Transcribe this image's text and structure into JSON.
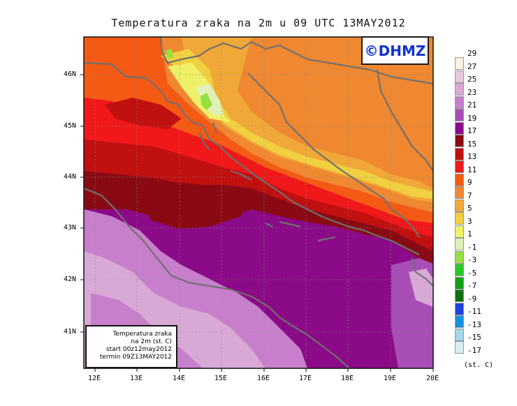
{
  "title": "Temperatura zraka na 2m u 09 UTC 13MAY2012",
  "watermark": "©DHMZ",
  "info_box": [
    "Temperatura zraka",
    "na 2m (st. C)",
    "start 00z12may2012",
    "termin 09Z13MAY2012"
  ],
  "latitude_labels": [
    "46N",
    "45N",
    "44N",
    "43N",
    "42N",
    "41N"
  ],
  "longitude_labels": [
    "12E",
    "13E",
    "14E",
    "15E",
    "16E",
    "17E",
    "18E",
    "19E",
    "20E"
  ],
  "legend": {
    "levels": [
      {
        "label": "29",
        "color": "#fff0e0"
      },
      {
        "label": "27",
        "color": "#e8c8dc"
      },
      {
        "label": "25",
        "color": "#d9a9d6"
      },
      {
        "label": "23",
        "color": "#c77fcb"
      },
      {
        "label": "21",
        "color": "#a84eb6"
      },
      {
        "label": "19",
        "color": "#8b0a87"
      },
      {
        "label": "17",
        "color": "#8a0a14"
      },
      {
        "label": "15",
        "color": "#c01010"
      },
      {
        "label": "13",
        "color": "#f01818"
      },
      {
        "label": "11",
        "color": "#f55a14"
      },
      {
        "label": "9",
        "color": "#ef8830"
      },
      {
        "label": "7",
        "color": "#f0a838"
      },
      {
        "label": "5",
        "color": "#f0d040"
      },
      {
        "label": "3",
        "color": "#f0f068"
      },
      {
        "label": "1",
        "color": "#e0f0b8"
      },
      {
        "label": "-1",
        "color": "#96e040"
      },
      {
        "label": "-3",
        "color": "#28c828"
      },
      {
        "label": "-5",
        "color": "#14a014"
      },
      {
        "label": "-7",
        "color": "#0c6e0c"
      },
      {
        "label": "-9",
        "color": "#2040e0"
      },
      {
        "label": "-11",
        "color": "#1090e0"
      },
      {
        "label": "-13",
        "color": "#a0d8e8"
      },
      {
        "label": "-15",
        "color": "#d8f0f4"
      },
      {
        "label": "-17",
        "color": "#ffffff"
      }
    ],
    "unit": "(st. C)"
  }
}
